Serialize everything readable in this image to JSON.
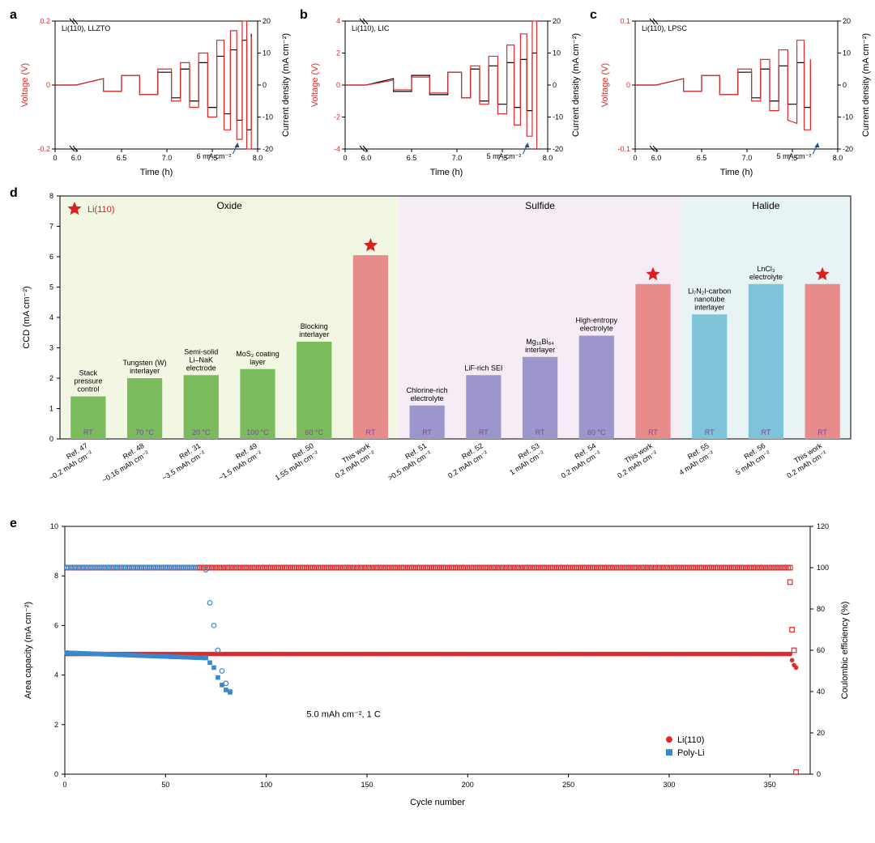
{
  "panelA": {
    "label": "a",
    "title": "Li(110), LLZTO",
    "xlabel": "Time (h)",
    "ylabels": [
      "Voltage (V)",
      "Current density (mA cm⁻²)"
    ],
    "ylim_left": [
      -0.2,
      0.2
    ],
    "ylim_right": [
      -20,
      20
    ],
    "xlim": [
      0,
      8.0
    ],
    "xticks": [
      0,
      6.0,
      6.5,
      7.0,
      7.5,
      8.0
    ],
    "yticks_left": [
      -0.2,
      0,
      0.2
    ],
    "yticks_right": [
      -20,
      -10,
      0,
      10,
      20
    ],
    "annotation": "6 mA cm⁻²",
    "voltage_color": "#e22a2a",
    "current_color": "#000000",
    "voltage": [
      [
        0,
        0
      ],
      [
        0.3,
        0
      ],
      [
        6.0,
        0
      ],
      [
        6.3,
        0.02
      ],
      [
        6.3,
        -0.02
      ],
      [
        6.5,
        -0.02
      ],
      [
        6.5,
        0.03
      ],
      [
        6.7,
        0.03
      ],
      [
        6.7,
        -0.03
      ],
      [
        6.9,
        -0.03
      ],
      [
        6.9,
        0.05
      ],
      [
        7.05,
        0.05
      ],
      [
        7.05,
        -0.05
      ],
      [
        7.15,
        -0.05
      ],
      [
        7.15,
        0.07
      ],
      [
        7.25,
        0.07
      ],
      [
        7.25,
        -0.07
      ],
      [
        7.35,
        -0.07
      ],
      [
        7.35,
        0.1
      ],
      [
        7.45,
        0.1
      ],
      [
        7.45,
        -0.1
      ],
      [
        7.55,
        -0.1
      ],
      [
        7.55,
        0.14
      ],
      [
        7.63,
        0.14
      ],
      [
        7.63,
        -0.14
      ],
      [
        7.7,
        -0.14
      ],
      [
        7.7,
        0.17
      ],
      [
        7.77,
        0.17
      ],
      [
        7.77,
        -0.17
      ],
      [
        7.83,
        -0.17
      ],
      [
        7.83,
        0.2
      ],
      [
        7.88,
        0.2
      ],
      [
        7.88,
        -0.2
      ],
      [
        7.93,
        -0.2
      ],
      [
        7.93,
        0.15
      ]
    ],
    "current": [
      [
        0,
        0
      ],
      [
        6.0,
        0
      ],
      [
        6.3,
        2
      ],
      [
        6.3,
        -2
      ],
      [
        6.5,
        -2
      ],
      [
        6.5,
        3
      ],
      [
        6.7,
        3
      ],
      [
        6.7,
        -3
      ],
      [
        6.9,
        -3
      ],
      [
        6.9,
        4
      ],
      [
        7.05,
        4
      ],
      [
        7.05,
        -4
      ],
      [
        7.15,
        -4
      ],
      [
        7.15,
        5
      ],
      [
        7.25,
        5
      ],
      [
        7.25,
        -5
      ],
      [
        7.35,
        -5
      ],
      [
        7.35,
        7
      ],
      [
        7.45,
        7
      ],
      [
        7.45,
        -7
      ],
      [
        7.55,
        -7
      ],
      [
        7.55,
        9
      ],
      [
        7.63,
        9
      ],
      [
        7.63,
        -9
      ],
      [
        7.7,
        -9
      ],
      [
        7.7,
        11
      ],
      [
        7.77,
        11
      ],
      [
        7.77,
        -11
      ],
      [
        7.83,
        -11
      ],
      [
        7.83,
        14
      ],
      [
        7.88,
        14
      ],
      [
        7.88,
        -14
      ],
      [
        7.93,
        -14
      ],
      [
        7.93,
        16
      ]
    ]
  },
  "panelB": {
    "label": "b",
    "title": "Li(110), LIC",
    "xlabel": "Time (h)",
    "ylabels": [
      "Voltage (V)",
      "Current density (mA cm⁻²)"
    ],
    "ylim_left": [
      -4,
      4
    ],
    "ylim_right": [
      -20,
      20
    ],
    "xlim": [
      0,
      8.0
    ],
    "xticks": [
      0,
      6.0,
      6.5,
      7.0,
      7.5,
      8.0
    ],
    "yticks_left": [
      -4,
      -2,
      0,
      2,
      4
    ],
    "yticks_right": [
      -20,
      -10,
      0,
      10,
      20
    ],
    "annotation": "5 mA cm⁻²",
    "voltage_color": "#e22a2a",
    "current_color": "#000000",
    "voltage": [
      [
        0,
        0
      ],
      [
        6.0,
        0
      ],
      [
        6.3,
        0.3
      ],
      [
        6.3,
        -0.3
      ],
      [
        6.5,
        -0.3
      ],
      [
        6.5,
        0.5
      ],
      [
        6.7,
        0.5
      ],
      [
        6.7,
        -0.5
      ],
      [
        6.9,
        -0.5
      ],
      [
        6.9,
        0.8
      ],
      [
        7.05,
        0.8
      ],
      [
        7.05,
        -0.8
      ],
      [
        7.15,
        -0.8
      ],
      [
        7.15,
        1.2
      ],
      [
        7.25,
        1.2
      ],
      [
        7.25,
        -1.2
      ],
      [
        7.35,
        -1.2
      ],
      [
        7.35,
        1.8
      ],
      [
        7.45,
        1.8
      ],
      [
        7.45,
        -1.8
      ],
      [
        7.55,
        -1.8
      ],
      [
        7.55,
        2.5
      ],
      [
        7.63,
        2.5
      ],
      [
        7.63,
        -2.5
      ],
      [
        7.7,
        -2.5
      ],
      [
        7.7,
        3.2
      ],
      [
        7.77,
        3.2
      ],
      [
        7.77,
        -3.2
      ],
      [
        7.83,
        -3.2
      ],
      [
        7.83,
        4
      ],
      [
        7.88,
        4
      ],
      [
        7.88,
        -4
      ]
    ],
    "current": [
      [
        0,
        0
      ],
      [
        6.0,
        0
      ],
      [
        6.3,
        2
      ],
      [
        6.3,
        -2
      ],
      [
        6.5,
        -2
      ],
      [
        6.5,
        3
      ],
      [
        6.7,
        3
      ],
      [
        6.7,
        -3
      ],
      [
        6.9,
        -3
      ],
      [
        6.9,
        4
      ],
      [
        7.05,
        4
      ],
      [
        7.05,
        -4
      ],
      [
        7.15,
        -4
      ],
      [
        7.15,
        5
      ],
      [
        7.25,
        5
      ],
      [
        7.25,
        -5
      ],
      [
        7.35,
        -5
      ],
      [
        7.35,
        6
      ],
      [
        7.45,
        6
      ],
      [
        7.45,
        -6
      ],
      [
        7.55,
        -6
      ],
      [
        7.55,
        7
      ],
      [
        7.63,
        7
      ],
      [
        7.63,
        -7
      ],
      [
        7.7,
        -7
      ],
      [
        7.7,
        8
      ],
      [
        7.77,
        8
      ],
      [
        7.77,
        -8
      ],
      [
        7.83,
        -8
      ],
      [
        7.83,
        10
      ],
      [
        7.88,
        10
      ]
    ]
  },
  "panelC": {
    "label": "c",
    "title": "Li(110), LPSC",
    "xlabel": "Time (h)",
    "ylabels": [
      "Voltage (V)",
      "Current density (mA cm⁻²)"
    ],
    "ylim_left": [
      -0.1,
      0.1
    ],
    "ylim_right": [
      -20,
      20
    ],
    "xlim": [
      0,
      8.0
    ],
    "xticks": [
      0,
      6.0,
      6.5,
      7.0,
      7.5,
      8.0
    ],
    "yticks_left": [
      -0.1,
      0,
      0.1
    ],
    "yticks_right": [
      -20,
      -10,
      0,
      10,
      20
    ],
    "annotation": "5 mA cm⁻²",
    "voltage_color": "#e22a2a",
    "current_color": "#000000",
    "voltage": [
      [
        0,
        0
      ],
      [
        6.0,
        0
      ],
      [
        6.3,
        0.01
      ],
      [
        6.3,
        -0.01
      ],
      [
        6.5,
        -0.01
      ],
      [
        6.5,
        0.015
      ],
      [
        6.7,
        0.015
      ],
      [
        6.7,
        -0.015
      ],
      [
        6.9,
        -0.015
      ],
      [
        6.9,
        0.025
      ],
      [
        7.05,
        0.025
      ],
      [
        7.05,
        -0.025
      ],
      [
        7.15,
        -0.025
      ],
      [
        7.15,
        0.04
      ],
      [
        7.25,
        0.04
      ],
      [
        7.25,
        -0.04
      ],
      [
        7.35,
        -0.04
      ],
      [
        7.35,
        0.055
      ],
      [
        7.45,
        0.055
      ],
      [
        7.45,
        -0.055
      ],
      [
        7.55,
        -0.06
      ],
      [
        7.55,
        0.07
      ],
      [
        7.63,
        0.07
      ],
      [
        7.63,
        -0.07
      ],
      [
        7.7,
        -0.07
      ],
      [
        7.7,
        0.04
      ]
    ],
    "current": [
      [
        0,
        0
      ],
      [
        6.0,
        0
      ],
      [
        6.3,
        2
      ],
      [
        6.3,
        -2
      ],
      [
        6.5,
        -2
      ],
      [
        6.5,
        3
      ],
      [
        6.7,
        3
      ],
      [
        6.7,
        -3
      ],
      [
        6.9,
        -3
      ],
      [
        6.9,
        4
      ],
      [
        7.05,
        4
      ],
      [
        7.05,
        -4
      ],
      [
        7.15,
        -4
      ],
      [
        7.15,
        5
      ],
      [
        7.25,
        5
      ],
      [
        7.25,
        -5
      ],
      [
        7.35,
        -5
      ],
      [
        7.35,
        6
      ],
      [
        7.45,
        6
      ],
      [
        7.45,
        -6
      ],
      [
        7.55,
        -6
      ],
      [
        7.55,
        7
      ],
      [
        7.63,
        7
      ],
      [
        7.63,
        -7
      ],
      [
        7.7,
        -7
      ],
      [
        7.7,
        8
      ]
    ]
  },
  "panelD": {
    "label": "d",
    "ylabel": "CCD (mA cm⁻²)",
    "ylim": [
      0,
      8
    ],
    "yticks": [
      0,
      1,
      2,
      3,
      4,
      5,
      6,
      7,
      8
    ],
    "star_legend": "Li(110)",
    "regions": [
      {
        "name": "Oxide",
        "color": "#f2f7e3",
        "start": 0,
        "end": 6
      },
      {
        "name": "Sulfide",
        "color": "#f6ecf6",
        "start": 6,
        "end": 11
      },
      {
        "name": "Halide",
        "color": "#e7f3f5",
        "start": 11,
        "end": 14
      }
    ],
    "bar_colors": {
      "oxide": "#7bbb5e",
      "sulfide": "#9d96cc",
      "halide": "#7ec3d8",
      "thiswork": "#e88b8b"
    },
    "temp_color": "#7b4a9c",
    "star_color": "#d82020",
    "bars": [
      {
        "ref": "Ref. 47",
        "cap": "~0.2 mAh cm⁻²",
        "desc": "Stack pressure control",
        "temp": "RT",
        "value": 1.4,
        "color": "oxide"
      },
      {
        "ref": "Ref. 48",
        "cap": "~0.16 mAh cm⁻²",
        "desc": "Tungsten (W) interlayer",
        "temp": "70 °C",
        "value": 2.0,
        "color": "oxide"
      },
      {
        "ref": "Ref. 31",
        "cap": "~3.5 mAh cm⁻²",
        "desc": "Semi-solid Li–NaK electrode",
        "temp": "20 °C",
        "value": 2.1,
        "color": "oxide"
      },
      {
        "ref": "Ref. 49",
        "cap": "~1.5 mAh cm⁻²",
        "desc": "MoS₂ coating layer",
        "temp": "100 °C",
        "value": 2.3,
        "color": "oxide"
      },
      {
        "ref": "Ref. 50",
        "cap": "1.55 mAh cm⁻²",
        "desc": "Blocking interlayer",
        "temp": "60 °C",
        "value": 3.2,
        "color": "oxide"
      },
      {
        "ref": "This work",
        "cap": "0.2 mAh cm⁻²",
        "desc": "",
        "temp": "RT",
        "value": 6.05,
        "color": "thiswork",
        "star": true
      },
      {
        "ref": "Ref. 51",
        "cap": ">0.5 mAh cm⁻²",
        "desc": "Chlorine-rich electrolyte",
        "temp": "RT",
        "value": 1.1,
        "color": "sulfide"
      },
      {
        "ref": "Ref. 52",
        "cap": "0.2 mAh cm⁻²",
        "desc": "LiF-rich SEI",
        "temp": "RT",
        "value": 2.1,
        "color": "sulfide"
      },
      {
        "ref": "Ref. 53",
        "cap": "1 mAh cm⁻²",
        "desc": "Mg₁₆Bi₈₄ interlayer",
        "temp": "RT",
        "value": 2.7,
        "color": "sulfide"
      },
      {
        "ref": "Ref. 54",
        "cap": "0.2 mAh cm⁻²",
        "desc": "High-entropy electrolyte",
        "temp": "60 °C",
        "value": 3.4,
        "color": "sulfide"
      },
      {
        "ref": "This work",
        "cap": "0.2 mAh cm⁻²",
        "desc": "",
        "temp": "RT",
        "value": 5.1,
        "color": "thiswork",
        "star": true
      },
      {
        "ref": "Ref. 55",
        "cap": "4 mAh cm⁻²",
        "desc": "Li₇N₂I-carbon nanotube interlayer",
        "temp": "RT",
        "value": 4.1,
        "color": "halide"
      },
      {
        "ref": "Ref. 56",
        "cap": "5 mAh cm⁻²",
        "desc": "LnCl₃ electrolyte",
        "temp": "RT",
        "value": 5.1,
        "color": "halide"
      },
      {
        "ref": "This work",
        "cap": "0.2 mAh cm⁻²",
        "desc": "",
        "temp": "RT",
        "value": 5.1,
        "color": "thiswork",
        "star": true
      }
    ]
  },
  "panelE": {
    "label": "e",
    "xlabel": "Cycle number",
    "ylabels": [
      "Area capacity (mA cm⁻²)",
      "Coulombic efficiency (%)"
    ],
    "ylim_left": [
      0,
      10
    ],
    "ylim_right": [
      0,
      120
    ],
    "xlim": [
      0,
      370
    ],
    "xticks": [
      0,
      50,
      100,
      150,
      200,
      250,
      300,
      350
    ],
    "yticks_left": [
      0,
      2,
      4,
      6,
      8,
      10
    ],
    "yticks_right": [
      0,
      20,
      40,
      60,
      80,
      100,
      120
    ],
    "annotation": "5.0 mAh cm⁻², 1 C",
    "legend": [
      {
        "name": "Li(110)",
        "color": "#e22a2a",
        "shape": "circle"
      },
      {
        "name": "Poly-Li",
        "color": "#3a87cc",
        "shape": "square"
      }
    ],
    "series": {
      "li110_cap": {
        "color": "#e22a2a",
        "marker": "filled-circle"
      },
      "li110_ce": {
        "color": "#e22a2a",
        "marker": "open-square"
      },
      "polyli_cap": {
        "color": "#3a87cc",
        "marker": "filled-square"
      },
      "polyli_ce": {
        "color": "#3a87cc",
        "marker": "open-circle"
      }
    },
    "li110_cap_value": 4.85,
    "li110_cap_end": [
      [
        360,
        4.85
      ],
      [
        361,
        4.6
      ],
      [
        362,
        4.4
      ],
      [
        363,
        4.3
      ]
    ],
    "li110_ce_value": 100,
    "li110_ce_end": [
      [
        360,
        93
      ],
      [
        361,
        70
      ],
      [
        362,
        60
      ],
      [
        363,
        1
      ]
    ],
    "polyli_cap": [
      [
        1,
        4.9
      ],
      [
        70,
        4.7
      ],
      [
        72,
        4.5
      ],
      [
        74,
        4.3
      ],
      [
        76,
        3.9
      ],
      [
        78,
        3.6
      ],
      [
        80,
        3.4
      ],
      [
        82,
        3.3
      ]
    ],
    "polyli_ce": [
      [
        1,
        100
      ],
      [
        65,
        100
      ],
      [
        70,
        99
      ],
      [
        72,
        83
      ],
      [
        74,
        72
      ],
      [
        76,
        60
      ],
      [
        78,
        50
      ],
      [
        80,
        44
      ],
      [
        82,
        40
      ]
    ]
  }
}
